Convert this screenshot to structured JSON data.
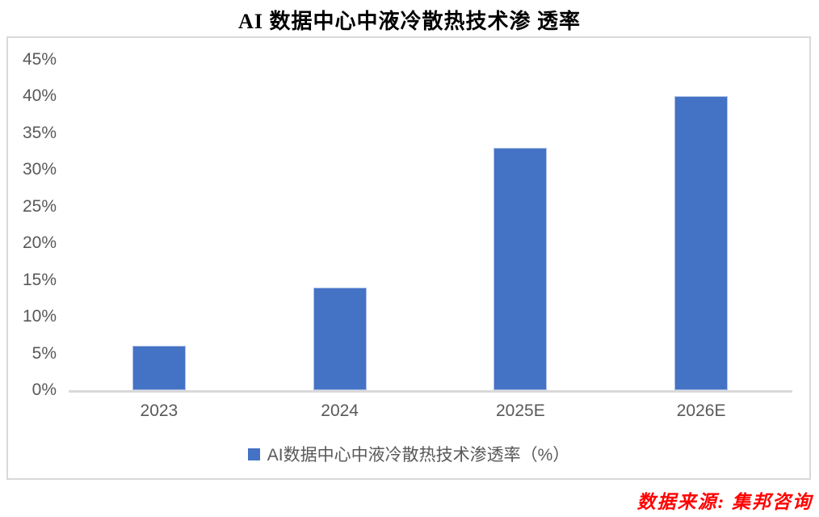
{
  "page": {
    "source_note": "数据来源: 集邦咨询"
  },
  "chart_data": {
    "type": "bar",
    "title": "AI 数据中心中液冷散热技术渗 透率",
    "categories": [
      "2023",
      "2024",
      "2025E",
      "2026E"
    ],
    "values": [
      6,
      14,
      33,
      40
    ],
    "value_unit": "%",
    "xlabel": "",
    "ylabel": "",
    "ylim": [
      0,
      45
    ],
    "ytick_step": 5,
    "ytick_suffix": "%",
    "grid": false,
    "legend_position": "bottom",
    "legend": [
      {
        "label": "AI数据中心中液冷散热技术渗透率（%）",
        "color": "#4472C4"
      }
    ],
    "colors": {
      "bar_fill": "#4472C4",
      "bar_edge": "#AEC0E8",
      "axis_text": "#595959",
      "frame_border": "#D9D9D9",
      "title_text": "#000000",
      "source_text": "#FF0000"
    }
  }
}
